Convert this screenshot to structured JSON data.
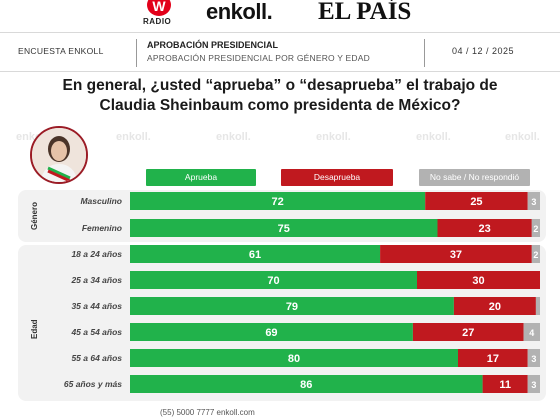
{
  "logos": {
    "radio_letter": "W",
    "radio_word": "RADIO",
    "enkoll": "enkoll.",
    "elpais": "EL PAÍS"
  },
  "header": {
    "left": "ENCUESTA ENKOLL",
    "title": "APROBACIÓN PRESIDENCIAL",
    "subtitle": "APROBACIÓN PRESIDENCIAL POR GÉNERO Y EDAD",
    "date": "04 / 12 / 2025"
  },
  "question": {
    "line1": "En general, ¿usted “aprueba” o “desaprueba” el trabajo de",
    "line2": "Claudia Sheinbaum como presidenta de México?"
  },
  "watermark_text": "enkoll.",
  "footer": "(55) 5000 7777   enkoll.com",
  "colors": {
    "aprueba": "#21b24b",
    "desaprueba": "#c0191f",
    "no_sabe": "#b2b2b2",
    "accent": "#9b1c26"
  },
  "groups": [
    {
      "label": "Género",
      "rows": [
        0,
        1
      ]
    },
    {
      "label": "Edad",
      "rows": [
        2,
        3,
        4,
        5,
        6,
        7
      ]
    }
  ],
  "chart_data": {
    "type": "bar",
    "stacked": true,
    "orientation": "horizontal",
    "categories": [
      "Masculino",
      "Femenino",
      "18 a 24 años",
      "25 a 34 años",
      "35 a 44 años",
      "45 a 54 años",
      "55 a 64 años",
      "65 años y más"
    ],
    "series": [
      {
        "name": "Aprueba",
        "values": [
          72,
          75,
          61,
          70,
          79,
          69,
          80,
          86
        ],
        "color": "#21b24b"
      },
      {
        "name": "Desaprueba",
        "values": [
          25,
          23,
          37,
          30,
          20,
          27,
          17,
          11
        ],
        "color": "#c0191f"
      },
      {
        "name": "No sabe / No respondió",
        "values": [
          3,
          2,
          2,
          0,
          1,
          4,
          3,
          3
        ],
        "color": "#b2b2b2"
      }
    ],
    "displayed_labels": [
      [
        "72",
        "25",
        "3"
      ],
      [
        "75",
        "23",
        "2"
      ],
      [
        "61",
        "37",
        "2"
      ],
      [
        "70",
        "30",
        ""
      ],
      [
        "79",
        "20",
        ""
      ],
      [
        "69",
        "27",
        "4"
      ],
      [
        "80",
        "17",
        "3"
      ],
      [
        "86",
        "11",
        "3"
      ]
    ],
    "xlim": [
      0,
      100
    ],
    "legend": "top"
  }
}
